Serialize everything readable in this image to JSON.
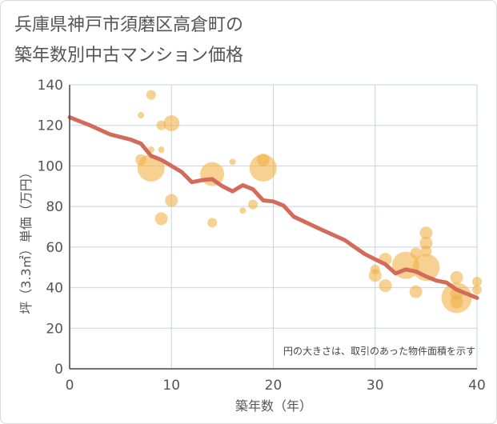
{
  "title": [
    "兵庫県神戸市須磨区高倉町の",
    "築年数別中古マンション価格"
  ],
  "chart_data": {
    "type": "scatter",
    "xlabel": "築年数（年）",
    "ylabel": "坪（3.3㎡）単価（万円）",
    "xlim": [
      0,
      40
    ],
    "ylim": [
      0,
      140
    ],
    "xticks": [
      "0",
      "10",
      "20",
      "30",
      "40"
    ],
    "yticks": [
      "0",
      "20",
      "40",
      "60",
      "80",
      "100",
      "120",
      "140"
    ],
    "grid": true,
    "note": "円の大きさは、取引のあった物件面積を示す",
    "colors": {
      "bubble": "#f0b24a",
      "line": "#d46a5a",
      "grid": "#c9d3df",
      "axis": "#444444"
    },
    "points": [
      {
        "x": 7,
        "y": 125,
        "r": 4
      },
      {
        "x": 8,
        "y": 135,
        "r": 6
      },
      {
        "x": 9,
        "y": 120,
        "r": 6
      },
      {
        "x": 10,
        "y": 121,
        "r": 10
      },
      {
        "x": 8,
        "y": 108,
        "r": 4
      },
      {
        "x": 9,
        "y": 108,
        "r": 4
      },
      {
        "x": 7,
        "y": 103,
        "r": 7
      },
      {
        "x": 8,
        "y": 99,
        "r": 17
      },
      {
        "x": 10,
        "y": 83,
        "r": 8
      },
      {
        "x": 9,
        "y": 74,
        "r": 8
      },
      {
        "x": 14,
        "y": 96,
        "r": 15
      },
      {
        "x": 14,
        "y": 72,
        "r": 6
      },
      {
        "x": 16,
        "y": 102,
        "r": 4
      },
      {
        "x": 17,
        "y": 78,
        "r": 4
      },
      {
        "x": 18,
        "y": 81,
        "r": 6
      },
      {
        "x": 19,
        "y": 99,
        "r": 17
      },
      {
        "x": 19,
        "y": 103,
        "r": 8
      },
      {
        "x": 30,
        "y": 46,
        "r": 8
      },
      {
        "x": 30,
        "y": 49,
        "r": 6
      },
      {
        "x": 31,
        "y": 54,
        "r": 8
      },
      {
        "x": 31,
        "y": 41,
        "r": 8
      },
      {
        "x": 33,
        "y": 51,
        "r": 17
      },
      {
        "x": 34,
        "y": 57,
        "r": 7
      },
      {
        "x": 34,
        "y": 38,
        "r": 8
      },
      {
        "x": 35,
        "y": 67,
        "r": 8
      },
      {
        "x": 35,
        "y": 62,
        "r": 8
      },
      {
        "x": 35,
        "y": 50,
        "r": 17
      },
      {
        "x": 35,
        "y": 58,
        "r": 7
      },
      {
        "x": 38,
        "y": 45,
        "r": 8
      },
      {
        "x": 38,
        "y": 37,
        "r": 8
      },
      {
        "x": 38,
        "y": 35,
        "r": 19
      },
      {
        "x": 38,
        "y": 33,
        "r": 8
      },
      {
        "x": 40,
        "y": 43,
        "r": 6
      },
      {
        "x": 40,
        "y": 39,
        "r": 6
      }
    ],
    "trend": [
      {
        "x": 0,
        "y": 124
      },
      {
        "x": 2,
        "y": 120
      },
      {
        "x": 4,
        "y": 115.5
      },
      {
        "x": 6,
        "y": 113
      },
      {
        "x": 7,
        "y": 111
      },
      {
        "x": 8,
        "y": 105
      },
      {
        "x": 9,
        "y": 103
      },
      {
        "x": 10,
        "y": 100
      },
      {
        "x": 11,
        "y": 97
      },
      {
        "x": 12,
        "y": 92
      },
      {
        "x": 13,
        "y": 93
      },
      {
        "x": 14,
        "y": 93.5
      },
      {
        "x": 15,
        "y": 90
      },
      {
        "x": 16,
        "y": 87.5
      },
      {
        "x": 17,
        "y": 90.5
      },
      {
        "x": 18,
        "y": 88.5
      },
      {
        "x": 19,
        "y": 83
      },
      {
        "x": 20,
        "y": 82.5
      },
      {
        "x": 21,
        "y": 80.5
      },
      {
        "x": 22,
        "y": 75
      },
      {
        "x": 25,
        "y": 68
      },
      {
        "x": 27,
        "y": 63.5
      },
      {
        "x": 28,
        "y": 60
      },
      {
        "x": 29,
        "y": 56.5
      },
      {
        "x": 30,
        "y": 54
      },
      {
        "x": 31,
        "y": 51.5
      },
      {
        "x": 32,
        "y": 47
      },
      {
        "x": 33,
        "y": 49
      },
      {
        "x": 34,
        "y": 48
      },
      {
        "x": 35,
        "y": 45.5
      },
      {
        "x": 36,
        "y": 43.5
      },
      {
        "x": 37,
        "y": 42.5
      },
      {
        "x": 38,
        "y": 39
      },
      {
        "x": 39,
        "y": 37
      },
      {
        "x": 40,
        "y": 35
      }
    ]
  }
}
